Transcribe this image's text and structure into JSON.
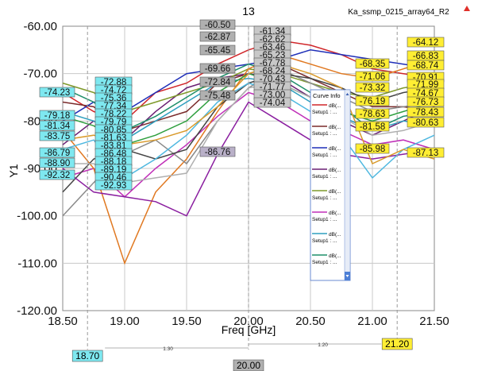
{
  "plot_number": "13",
  "project_name": "Ka_ssmp_0215_array64_R2",
  "curve_info": {
    "title": "Curve Info",
    "entries": [
      {
        "name": "dB(...",
        "setup": "Setup1 : ...",
        "color": "#d0262a"
      },
      {
        "name": "dB(...",
        "setup": "Setup1 : ...",
        "color": "#7a2b2b"
      },
      {
        "name": "dB(...",
        "setup": "Setup1 : ...",
        "color": "#1f2fb8"
      },
      {
        "name": "dB(...",
        "setup": "Setup1 : ...",
        "color": "#6a1f73"
      },
      {
        "name": "dB(...",
        "setup": "Setup1 : ...",
        "color": "#7f9a2b"
      },
      {
        "name": "dB(...",
        "setup": "Setup1 : ...",
        "color": "#c02fb8"
      },
      {
        "name": "dB(...",
        "setup": "Setup1 : ...",
        "color": "#2f9fbf"
      },
      {
        "name": "dB(...",
        "setup": "Setup1 : ...",
        "color": "#1f8f6a"
      }
    ]
  },
  "chart_data": {
    "type": "line",
    "xlabel": "Freq [GHz]",
    "ylabel": "Y1",
    "xlim": [
      18.5,
      21.5
    ],
    "ylim": [
      -120,
      -60
    ],
    "x_ticks": [
      "18.50",
      "19.00",
      "19.50",
      "20.00",
      "20.50",
      "21.00",
      "21.50"
    ],
    "y_ticks": [
      "-60.00",
      "-70.00",
      "-80.00",
      "-90.00",
      "-100.00",
      "-110.00",
      "-120.00"
    ],
    "grid": true,
    "x": [
      18.5,
      18.75,
      19.0,
      19.25,
      19.5,
      19.75,
      20.0,
      20.25,
      20.5,
      20.75,
      21.0,
      21.25,
      21.5
    ],
    "series": [
      {
        "color": "#d0262a",
        "values": [
          -74,
          -78,
          -80,
          -74,
          -72,
          -68,
          -65,
          -63,
          -64,
          -66,
          -69,
          -70,
          -71
        ]
      },
      {
        "color": "#7a2b2b",
        "values": [
          -76,
          -77,
          -82,
          -80,
          -78,
          -72,
          -70,
          -68,
          -71,
          -74,
          -77,
          -77,
          -78
        ]
      },
      {
        "color": "#1f2fb8",
        "values": [
          -80,
          -76,
          -78,
          -74,
          -70,
          -69,
          -68,
          -67,
          -65,
          -66,
          -67,
          -68,
          -69
        ]
      },
      {
        "color": "#6a1f73",
        "values": [
          -85,
          -80,
          -84,
          -78,
          -73,
          -71,
          -70,
          -71,
          -75,
          -80,
          -83,
          -80,
          -77
        ]
      },
      {
        "color": "#7f9a2b",
        "values": [
          -72,
          -74,
          -78,
          -76,
          -74,
          -72,
          -69,
          -70,
          -72,
          -74,
          -75,
          -73,
          -72
        ]
      },
      {
        "color": "#c02fb8",
        "values": [
          -92,
          -90,
          -96,
          -90,
          -85,
          -79,
          -74,
          -76,
          -80,
          -82,
          -85,
          -84,
          -86
        ]
      },
      {
        "color": "#2f9fbf",
        "values": [
          -78,
          -80,
          -84,
          -80,
          -76,
          -72,
          -71,
          -72,
          -76,
          -79,
          -82,
          -80,
          -81
        ]
      },
      {
        "color": "#1f8f6a",
        "values": [
          -73,
          -76,
          -82,
          -79,
          -75,
          -71,
          -68,
          -70,
          -74,
          -77,
          -82,
          -79,
          -78
        ]
      },
      {
        "color": "#e07820",
        "values": [
          -82,
          -90,
          -110,
          -95,
          -88,
          -78,
          -69,
          -66,
          -68,
          -70,
          -71,
          -69,
          -67
        ]
      },
      {
        "color": "#8a8a8a",
        "values": [
          -100,
          -93,
          -87,
          -84,
          -89,
          -80,
          -73,
          -69,
          -72,
          -75,
          -78,
          -77,
          -76
        ]
      },
      {
        "color": "#444444",
        "values": [
          -95,
          -88,
          -86,
          -88,
          -86,
          -77,
          -72,
          -70,
          -71,
          -73,
          -76,
          -74,
          -73
        ]
      },
      {
        "color": "#8b1fa0",
        "values": [
          -90,
          -95,
          -96,
          -97,
          -100,
          -87,
          -76,
          -80,
          -84,
          -87,
          -88,
          -87,
          -86
        ]
      },
      {
        "color": "#2f9f3f",
        "values": [
          -79,
          -81,
          -85,
          -83,
          -80,
          -74,
          -70,
          -72,
          -75,
          -78,
          -80,
          -78,
          -76
        ]
      },
      {
        "color": "#4fb8e0",
        "values": [
          -86,
          -84,
          -92,
          -88,
          -83,
          -76,
          -72,
          -74,
          -78,
          -83,
          -92,
          -86,
          -83
        ]
      },
      {
        "color": "#b0b0b0",
        "values": [
          -89,
          -89,
          -93,
          -92,
          -91,
          -80,
          -73,
          -72,
          -75,
          -79,
          -83,
          -82,
          -80
        ]
      },
      {
        "color": "#d99a2b",
        "values": [
          -84,
          -83,
          -85,
          -84,
          -82,
          -77,
          -70,
          -68,
          -70,
          -73,
          -89,
          -86,
          -88
        ]
      }
    ],
    "markers_left": [
      "-74.23",
      "-79.18",
      "-81.34",
      "-83.75",
      "-86.79",
      "-88.90",
      "-92.32"
    ],
    "markers_m1": [
      "-72.88",
      "-74.72",
      "-75.36",
      "-77.34",
      "-78.22",
      "-79.79",
      "-80.85",
      "-81.63",
      "-83.81",
      "-86.48",
      "-88.18",
      "-89.19",
      "-90.46",
      "-92.93"
    ],
    "markers_m2": [
      "-60.50",
      "-62.87",
      "-65.45",
      "-69.66",
      "-72.84",
      "-75.48",
      "-86.76"
    ],
    "markers_m2_data": [
      "-61.34",
      "-62.62",
      "-63.46",
      "-65.23",
      "-67.78",
      "-68.24",
      "-70.43",
      "-71.77",
      "-73.00",
      "-74.04"
    ],
    "markers_mid_right": [
      "-68.35",
      "-71.06",
      "-73.32",
      "-76.19",
      "-78.63",
      "-81.58",
      "-85.98"
    ],
    "markers_right": [
      "-64.12",
      "-66.83",
      "-68.74",
      "-70.91",
      "-71.99",
      "-74.67",
      "-76.73",
      "-78.43",
      "-80.63",
      "-87.13"
    ],
    "marker_x": {
      "m1": "18.70",
      "m2": "20.00",
      "m3": "21.20"
    },
    "delta_labels": {
      "m1_m2": "1.30",
      "m2_m3": "1.20"
    }
  }
}
